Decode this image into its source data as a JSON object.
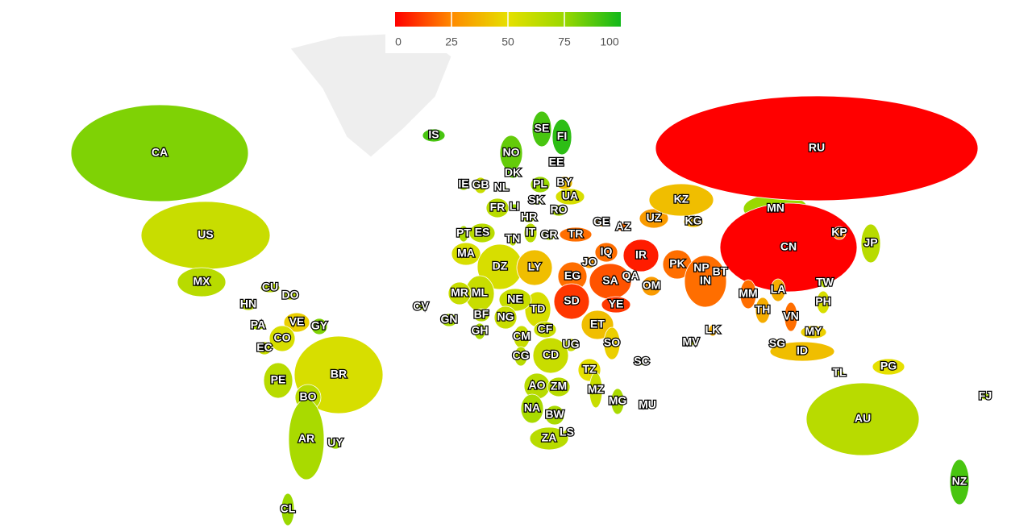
{
  "legend": {
    "range": [
      0,
      100
    ],
    "ticks": [
      0,
      25,
      50,
      75,
      100
    ],
    "colors": [
      "#ff0000",
      "#ff8a00",
      "#e6e000",
      "#9ad800",
      "#12b81a"
    ]
  },
  "countries": [
    {
      "code": "CA",
      "value": 80
    },
    {
      "code": "US",
      "value": 60
    },
    {
      "code": "MX",
      "value": 65
    },
    {
      "code": "CU",
      "value": 65
    },
    {
      "code": "DO",
      "value": 65
    },
    {
      "code": "HN",
      "value": 65
    },
    {
      "code": "PA",
      "value": 70
    },
    {
      "code": "VE",
      "value": 45
    },
    {
      "code": "GY",
      "value": 80
    },
    {
      "code": "CO",
      "value": 55
    },
    {
      "code": "EC",
      "value": 60
    },
    {
      "code": "PE",
      "value": 65
    },
    {
      "code": "BR",
      "value": 55
    },
    {
      "code": "BO",
      "value": 65
    },
    {
      "code": "AR",
      "value": 70
    },
    {
      "code": "UY",
      "value": 75
    },
    {
      "code": "CL",
      "value": 75
    },
    {
      "code": "IS",
      "value": 90
    },
    {
      "code": "NO",
      "value": 85
    },
    {
      "code": "SE",
      "value": 90
    },
    {
      "code": "FI",
      "value": 95
    },
    {
      "code": "EE",
      "value": 85
    },
    {
      "code": "DK",
      "value": 85
    },
    {
      "code": "IE",
      "value": 75
    },
    {
      "code": "GB",
      "value": 60
    },
    {
      "code": "NL",
      "value": 75
    },
    {
      "code": "BY",
      "value": 40
    },
    {
      "code": "PL",
      "value": 75
    },
    {
      "code": "UA",
      "value": 55
    },
    {
      "code": "SK",
      "value": 75
    },
    {
      "code": "FR",
      "value": 65
    },
    {
      "code": "LI",
      "value": 75
    },
    {
      "code": "RO",
      "value": 70
    },
    {
      "code": "HR",
      "value": 70
    },
    {
      "code": "PT",
      "value": 70
    },
    {
      "code": "ES",
      "value": 65
    },
    {
      "code": "IT",
      "value": 65
    },
    {
      "code": "GR",
      "value": 70
    },
    {
      "code": "TN",
      "value": 65
    },
    {
      "code": "TR",
      "value": 20
    },
    {
      "code": "GE",
      "value": 30
    },
    {
      "code": "AZ",
      "value": 20
    },
    {
      "code": "UZ",
      "value": 30
    },
    {
      "code": "KZ",
      "value": 40
    },
    {
      "code": "KG",
      "value": 40
    },
    {
      "code": "MN",
      "value": 75
    },
    {
      "code": "RU",
      "value": 0
    },
    {
      "code": "CN",
      "value": 0
    },
    {
      "code": "KP",
      "value": 25
    },
    {
      "code": "JP",
      "value": 65
    },
    {
      "code": "MA",
      "value": 55
    },
    {
      "code": "DZ",
      "value": 55
    },
    {
      "code": "LY",
      "value": 40
    },
    {
      "code": "EG",
      "value": 20
    },
    {
      "code": "JO",
      "value": 30
    },
    {
      "code": "IQ",
      "value": 20
    },
    {
      "code": "IR",
      "value": 5
    },
    {
      "code": "SA",
      "value": 15
    },
    {
      "code": "QA",
      "value": 25
    },
    {
      "code": "OM",
      "value": 30
    },
    {
      "code": "PK",
      "value": 20
    },
    {
      "code": "NP",
      "value": 35
    },
    {
      "code": "BT",
      "value": 40
    },
    {
      "code": "IN",
      "value": 20
    },
    {
      "code": "MM",
      "value": 20
    },
    {
      "code": "LA",
      "value": 35
    },
    {
      "code": "TW",
      "value": 65
    },
    {
      "code": "PH",
      "value": 55
    },
    {
      "code": "TH",
      "value": 35
    },
    {
      "code": "VN",
      "value": 20
    },
    {
      "code": "MY",
      "value": 45
    },
    {
      "code": "SG",
      "value": 40
    },
    {
      "code": "ID",
      "value": 40
    },
    {
      "code": "TL",
      "value": 60
    },
    {
      "code": "PG",
      "value": 50
    },
    {
      "code": "LK",
      "value": 35
    },
    {
      "code": "MV",
      "value": 60
    },
    {
      "code": "YE",
      "value": 10
    },
    {
      "code": "SD",
      "value": 10
    },
    {
      "code": "TD",
      "value": 55
    },
    {
      "code": "NE",
      "value": 60
    },
    {
      "code": "ML",
      "value": 60
    },
    {
      "code": "MR",
      "value": 60
    },
    {
      "code": "BF",
      "value": 65
    },
    {
      "code": "GN",
      "value": 70
    },
    {
      "code": "GH",
      "value": 70
    },
    {
      "code": "NG",
      "value": 60
    },
    {
      "code": "CM",
      "value": 60
    },
    {
      "code": "CF",
      "value": 60
    },
    {
      "code": "ET",
      "value": 40
    },
    {
      "code": "SO",
      "value": 45
    },
    {
      "code": "SC",
      "value": 70
    },
    {
      "code": "UG",
      "value": 60
    },
    {
      "code": "CG",
      "value": 65
    },
    {
      "code": "CD",
      "value": 60
    },
    {
      "code": "TZ",
      "value": 50
    },
    {
      "code": "CV",
      "value": 70
    },
    {
      "code": "AO",
      "value": 65
    },
    {
      "code": "ZM",
      "value": 65
    },
    {
      "code": "MZ",
      "value": 60
    },
    {
      "code": "MG",
      "value": 70
    },
    {
      "code": "MU",
      "value": 75
    },
    {
      "code": "NA",
      "value": 70
    },
    {
      "code": "BW",
      "value": 70
    },
    {
      "code": "ZA",
      "value": 65
    },
    {
      "code": "LS",
      "value": 65
    },
    {
      "code": "AU",
      "value": 65
    },
    {
      "code": "NZ",
      "value": 90
    },
    {
      "code": "FJ",
      "value": 70
    }
  ]
}
